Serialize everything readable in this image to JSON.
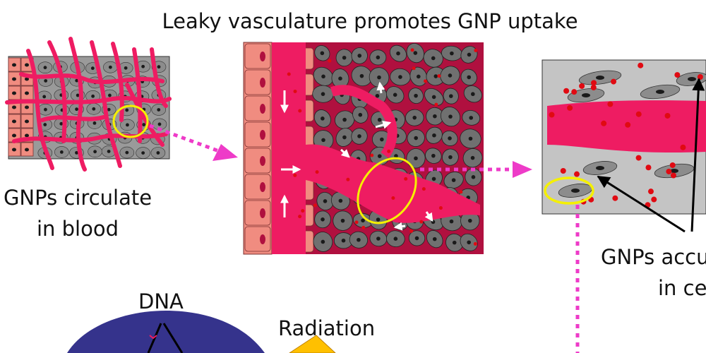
{
  "title": "Leaky vasculature promotes GNP uptake",
  "labels": {
    "circulate_line1": "GNPs circulate",
    "circulate_line2": "in blood",
    "accumulate_line1": "GNPs accu",
    "accumulate_line2": "in ce",
    "dna": "DNA",
    "radiation": "Radiation"
  },
  "colors": {
    "vessel": "#ee1c62",
    "vessel_dark": "#b0103f",
    "endothelial": "#f08c80",
    "tumor_cell": "#707070",
    "tissue_bg": "#c4c4c4",
    "nucleus": "#1a1a1a",
    "gnp": "#e00a12",
    "highlight": "#f5f000",
    "arrow": "#ee3bc8",
    "dna_fill": "#35338c",
    "radiation_fill": "#ffc000"
  },
  "icons": [
    "dotted-arrow-icon",
    "white-arrow-icon",
    "black-arrow-icon",
    "radiation-beam-icon"
  ]
}
